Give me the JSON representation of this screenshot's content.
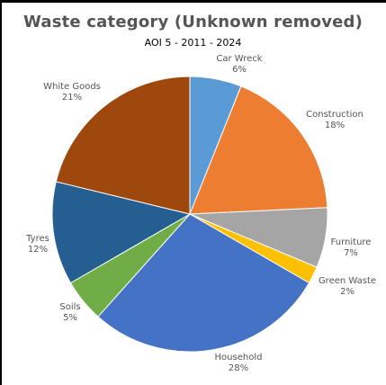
{
  "chart_data": {
    "type": "pie",
    "title": "Waste category (Unknown removed)",
    "subtitle": "AOI 5 - 2011 - 2024",
    "slices": [
      {
        "label": "Car Wreck",
        "percent_label": "6%",
        "value": 6,
        "color": "#5b9bd5"
      },
      {
        "label": "Construction",
        "percent_label": "18%",
        "value": 18,
        "color": "#ed7d31"
      },
      {
        "label": "Furniture",
        "percent_label": "7%",
        "value": 7,
        "color": "#a5a5a5"
      },
      {
        "label": "Green Waste",
        "percent_label": "2%",
        "value": 2,
        "color": "#ffc000"
      },
      {
        "label": "Household",
        "percent_label": "28%",
        "value": 28,
        "color": "#4472c4"
      },
      {
        "label": "Soils",
        "percent_label": "5%",
        "value": 5,
        "color": "#70ad47"
      },
      {
        "label": "Tyres",
        "percent_label": "12%",
        "value": 12,
        "color": "#255e91"
      },
      {
        "label": "White Goods",
        "percent_label": "21%",
        "value": 21,
        "color": "#9e480e"
      }
    ]
  }
}
